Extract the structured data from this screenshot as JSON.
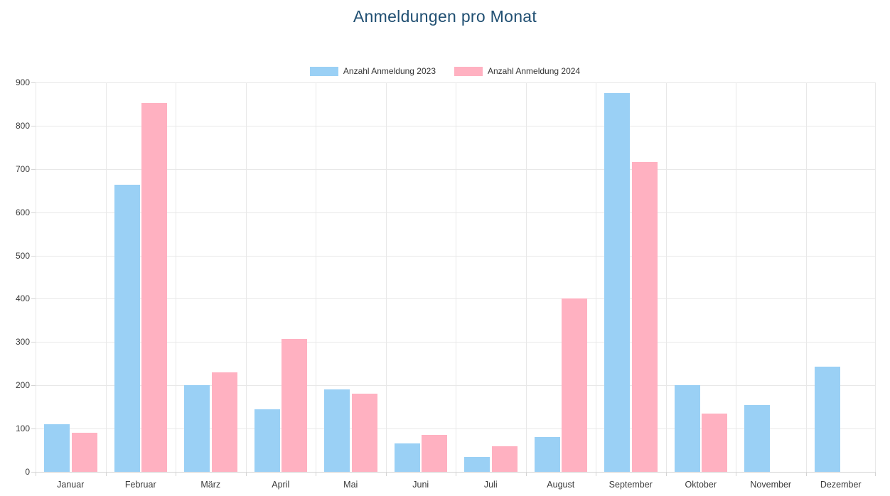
{
  "chart_data": {
    "type": "bar",
    "title": "Anmeldungen pro Monat",
    "title_color": "#204f72",
    "categories": [
      "Januar",
      "Februar",
      "März",
      "April",
      "Mai",
      "Juni",
      "Juli",
      "August",
      "September",
      "Oktober",
      "November",
      "Dezember"
    ],
    "series": [
      {
        "name": "Anzahl Anmeldung 2023",
        "color": "#9ad0f5",
        "values": [
          110,
          663,
          200,
          145,
          191,
          65,
          35,
          80,
          875,
          201,
          154,
          243
        ]
      },
      {
        "name": "Anzahl Anmeldung 2024",
        "color": "#ffb1c1",
        "values": [
          90,
          852,
          230,
          307,
          180,
          86,
          59,
          400,
          716,
          135,
          0,
          0
        ]
      }
    ],
    "xlabel": "",
    "ylabel": "",
    "ylim": [
      0,
      900
    ],
    "ystep": 100,
    "grid": true,
    "legend_position": "top"
  }
}
